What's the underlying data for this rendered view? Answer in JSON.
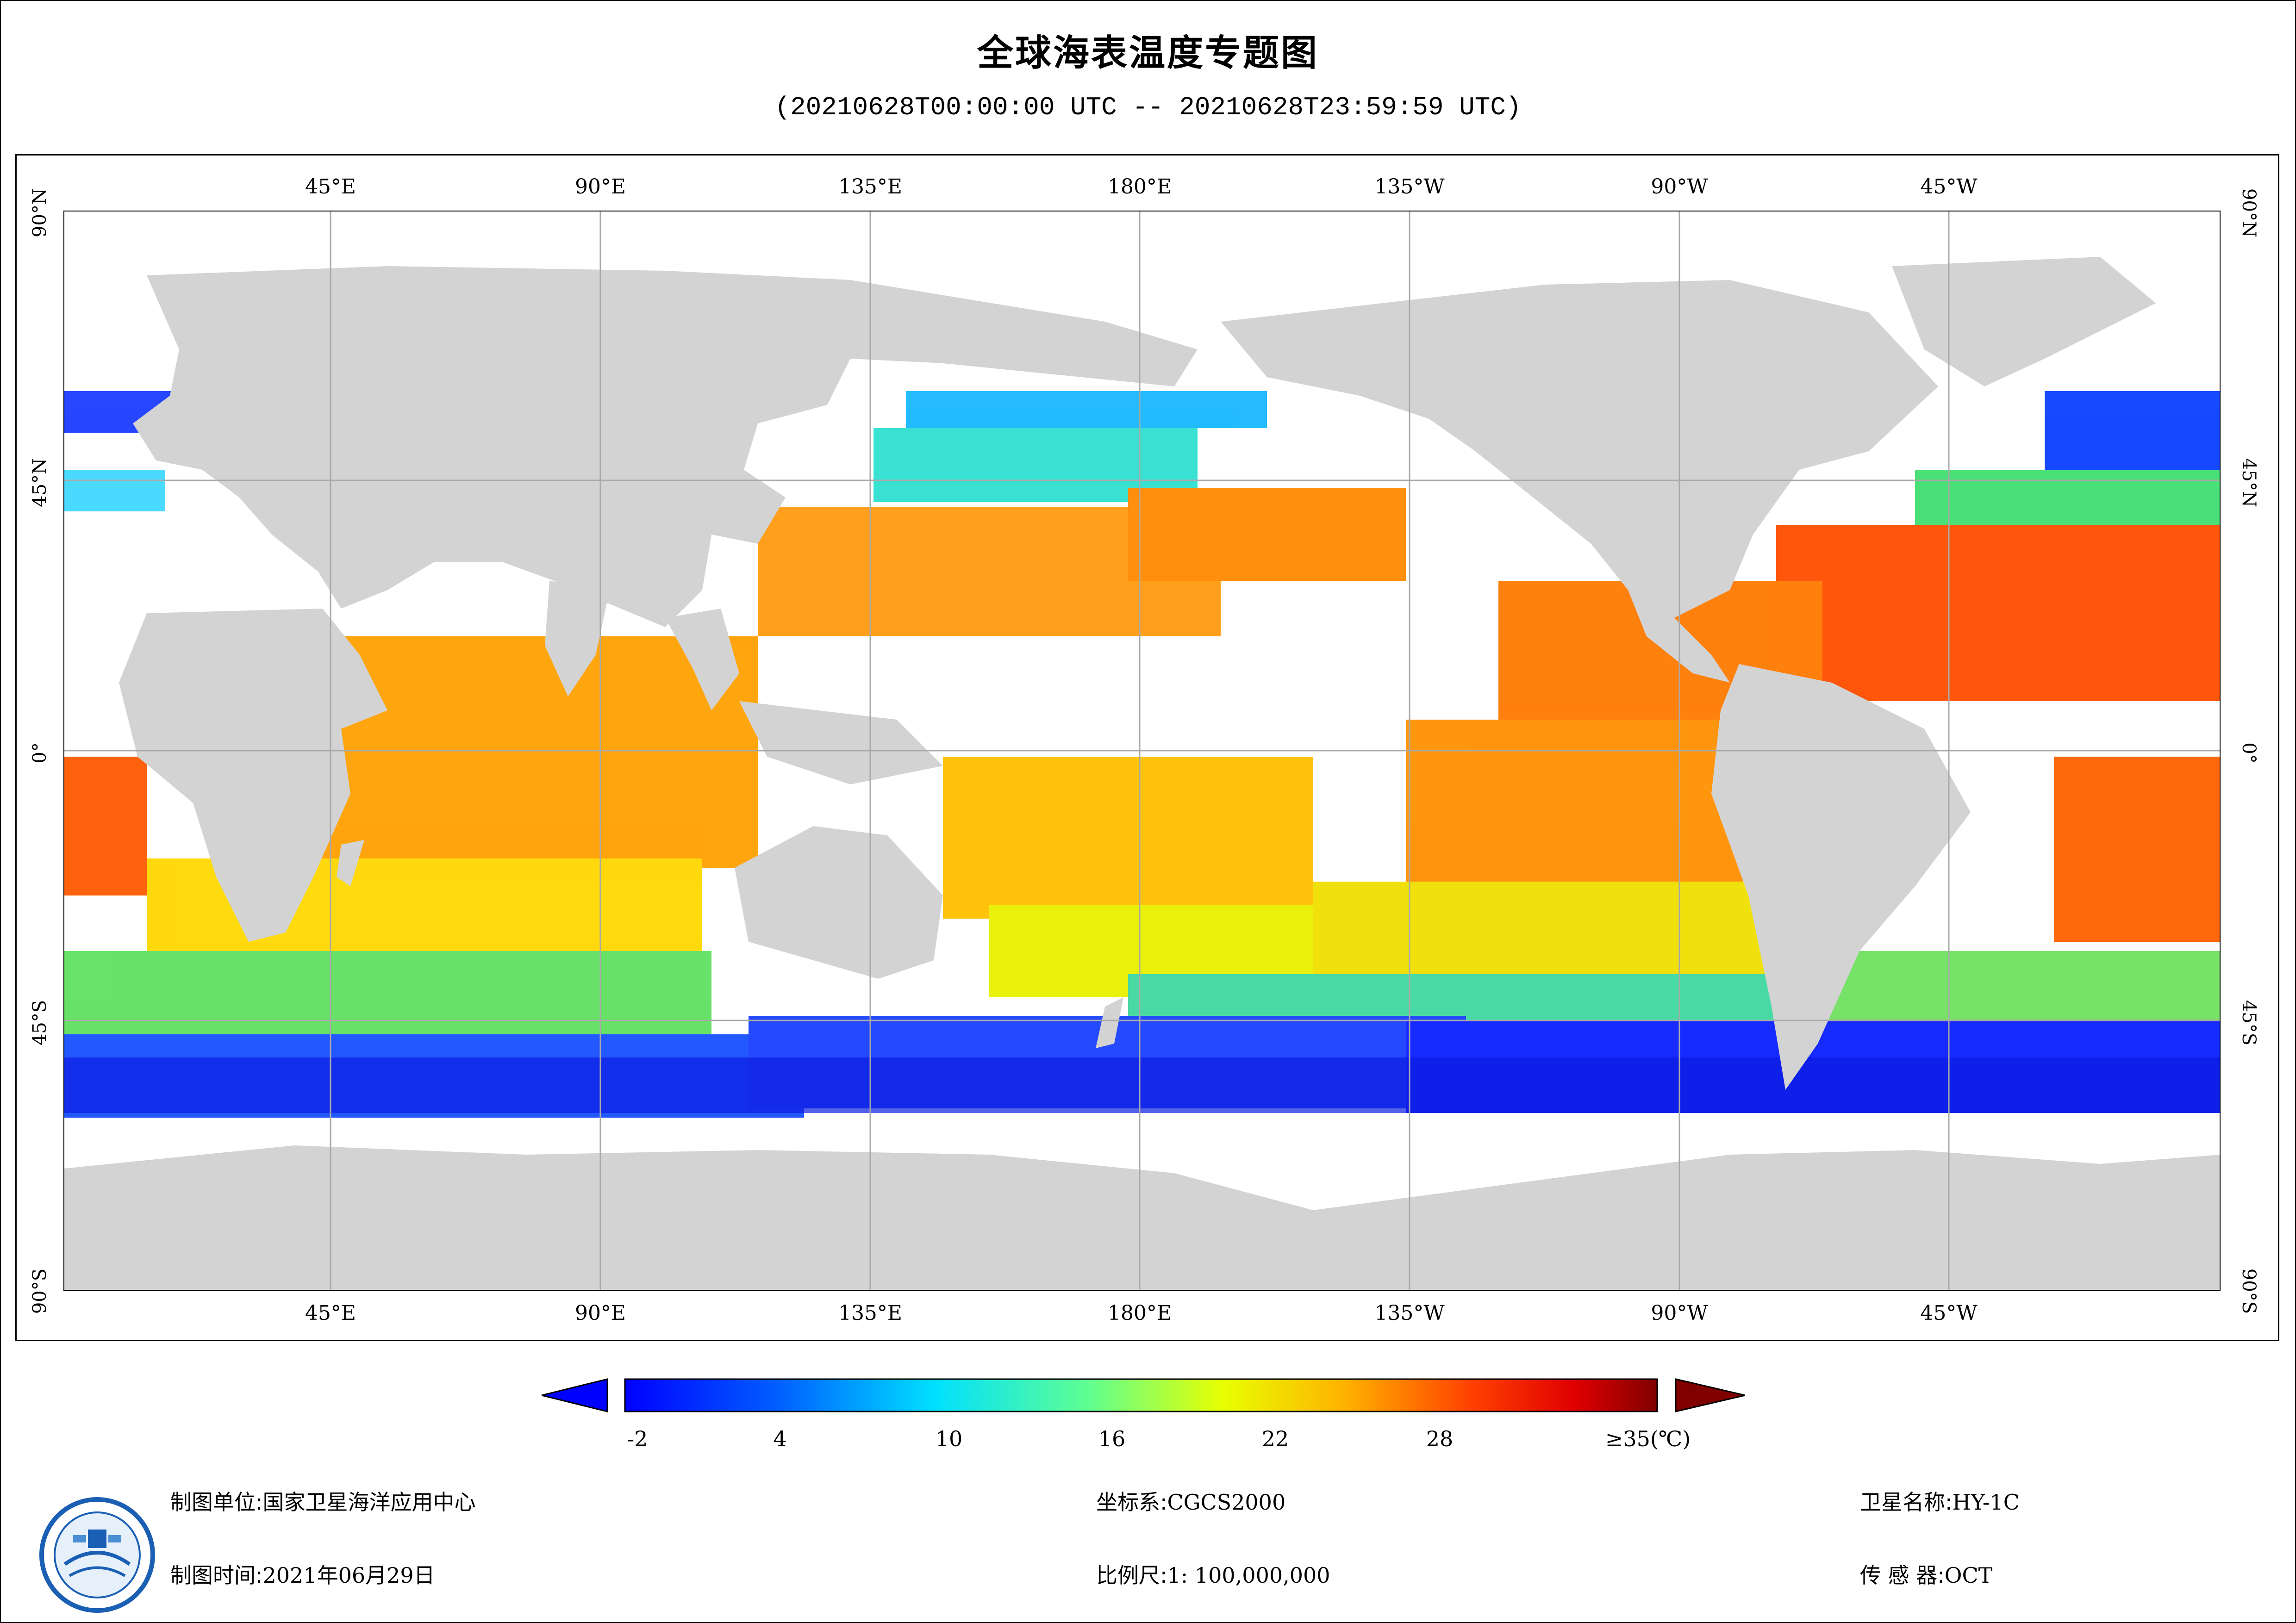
{
  "title": "全球海表温度专题图",
  "subtitle": "(20210628T00:00:00 UTC -- 20210628T23:59:59 UTC)",
  "map": {
    "lon_labels_top": [
      "45°E",
      "90°E",
      "135°E",
      "180°E",
      "135°W",
      "90°W",
      "45°W"
    ],
    "lon_labels_bottom": [
      "45°E",
      "90°E",
      "135°E",
      "180°E",
      "135°W",
      "90°W",
      "45°W"
    ],
    "lat_labels_left": [
      "90°N",
      "45°N",
      "0°",
      "45°S",
      "90°S"
    ],
    "lat_labels_right": [
      "90°N",
      "45°N",
      "0°",
      "45°S",
      "90°S"
    ],
    "land_color": "#d3d3d3",
    "grid_color": "#a9a9a9"
  },
  "colorbar": {
    "labels": [
      "-2",
      "4",
      "10",
      "16",
      "22",
      "28",
      "≥35(℃)"
    ],
    "min": -2,
    "max": 35,
    "left_arrow_color": "#0000ff",
    "right_arrow_color": "#800000"
  },
  "footer": {
    "unit_label": "制图单位:",
    "unit_value": "国家卫星海洋应用中心",
    "time_label": "制图时间:",
    "time_value": "2021年06月29日",
    "crs_label": "坐标系:",
    "crs_value": "CGCS2000",
    "scale_label": "比例尺:",
    "scale_value": "1: 100,000,000",
    "satellite_label": "卫星名称:",
    "satellite_value": "HY-1C",
    "sensor_label": "传 感 器:",
    "sensor_value": "OCT"
  }
}
